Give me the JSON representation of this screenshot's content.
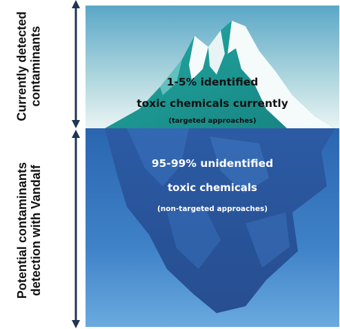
{
  "side_labels": {
    "top": {
      "line1": "Currently detected",
      "line2": "contaminants"
    },
    "bottom": {
      "line1": "Potential contaminants",
      "line2": "detection with Vandalf"
    }
  },
  "iceberg_text": {
    "above": {
      "line1": "1-5% identified",
      "line2": "toxic chemicals currently",
      "line3": "(targeted approaches)"
    },
    "below": {
      "line1": "95-99% unidentified",
      "line2": "toxic chemicals",
      "line3": "(non-targeted approaches)"
    }
  },
  "colors": {
    "sky_top": "#5aa7c7",
    "sky_bottom": "#e9f4f3",
    "water_top": "#2f6fb7",
    "water_bottom": "#66a6dc",
    "ice_teal": "#1f9a9c",
    "snow": "#f5fafb",
    "arrow": "#1f3550"
  }
}
